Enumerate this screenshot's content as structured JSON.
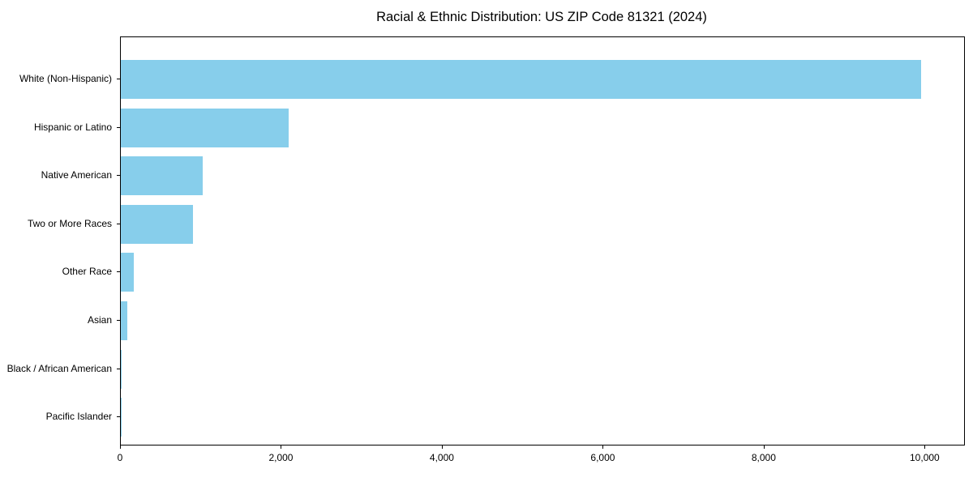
{
  "title": "Racial & Ethnic Distribution: US ZIP Code 81321 (2024)",
  "chart_data": {
    "type": "bar",
    "orientation": "horizontal",
    "title": "Racial & Ethnic Distribution: US ZIP Code 81321 (2024)",
    "categories": [
      "White (Non-Hispanic)",
      "Hispanic or Latino",
      "Native American",
      "Two or More Races",
      "Other Race",
      "Asian",
      "Black / African American",
      "Pacific Islander"
    ],
    "values": [
      9950,
      2090,
      1020,
      900,
      160,
      80,
      15,
      5
    ],
    "xlabel": "",
    "ylabel": "",
    "xlim": [
      0,
      10480
    ],
    "xticks": [
      0,
      2000,
      4000,
      6000,
      8000,
      10000
    ],
    "xtick_labels": [
      "0",
      "2,000",
      "4,000",
      "6,000",
      "8,000",
      "10,000"
    ],
    "bar_color": "#87CEEB",
    "grid": false,
    "legend": null
  }
}
